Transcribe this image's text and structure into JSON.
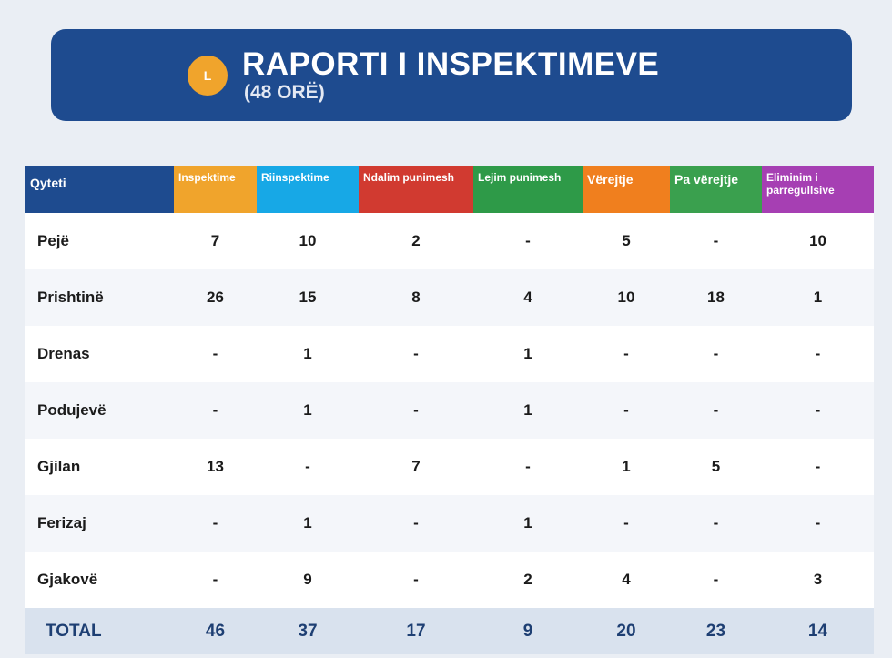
{
  "header": {
    "logo_letter": "L",
    "title": "RAPORTI I INSPEKTIMEVE",
    "subtitle": "(48 ORË)"
  },
  "colors": {
    "banner": "#1e4b8f",
    "logo": "#f0a42c",
    "columns": [
      "#1e4b8f",
      "#f0a42c",
      "#17a8e6",
      "#d13a30",
      "#2e9a48",
      "#f07f1e",
      "#3aa04e",
      "#a63fb3"
    ]
  },
  "table": {
    "columns": [
      "Qyteti",
      "Inspektime",
      "Riinspektime",
      "Ndalim punimesh",
      "Lejim punimesh",
      "Vërejtje",
      "Pa vërejtje",
      "Eliminim i parregullsive"
    ],
    "rows": [
      {
        "city": "Pejë",
        "values": [
          "7",
          "10",
          "2",
          "-",
          "5",
          "-",
          "10"
        ]
      },
      {
        "city": "Prishtinë",
        "values": [
          "26",
          "15",
          "8",
          "4",
          "10",
          "18",
          "1"
        ]
      },
      {
        "city": "Drenas",
        "values": [
          "-",
          "1",
          "-",
          "1",
          "-",
          "-",
          "-"
        ]
      },
      {
        "city": "Podujevë",
        "values": [
          "-",
          "1",
          "-",
          "1",
          "-",
          "-",
          "-"
        ]
      },
      {
        "city": "Gjilan",
        "values": [
          "13",
          "-",
          "7",
          "-",
          "1",
          "5",
          "-"
        ]
      },
      {
        "city": "Ferizaj",
        "values": [
          "-",
          "1",
          "-",
          "1",
          "-",
          "-",
          "-"
        ]
      },
      {
        "city": "Gjakovë",
        "values": [
          "-",
          "9",
          "-",
          "2",
          "4",
          "-",
          "3"
        ]
      }
    ],
    "total": {
      "label": "TOTAL",
      "values": [
        "46",
        "37",
        "17",
        "9",
        "20",
        "23",
        "14"
      ]
    }
  }
}
